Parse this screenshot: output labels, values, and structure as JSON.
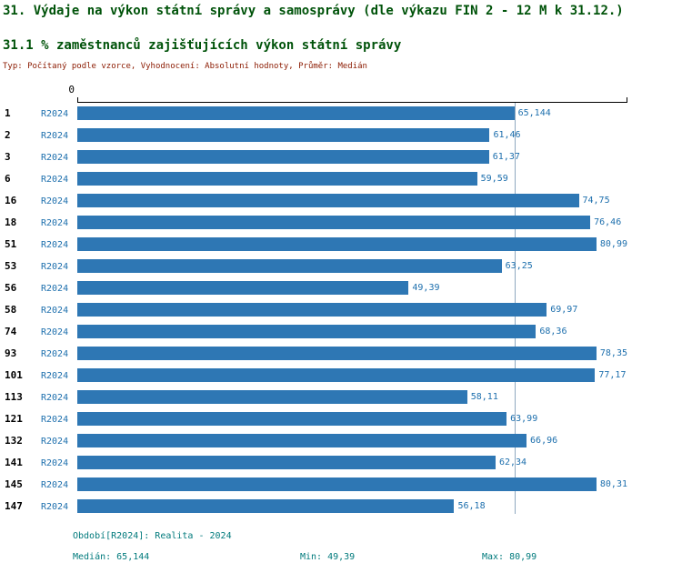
{
  "header": {
    "title": "31. Výdaje na výkon státní správy a samosprávy (dle výkazu FIN 2 - 12 M k 31.12.)",
    "subtitle": "31.1 % zaměstnanců zajišťujících výkon státní správy",
    "meta": "Typ: Počítaný podle vzorce, Vyhodnocení: Absolutní hodnoty, Průměr: Medián"
  },
  "chart_data": {
    "type": "bar",
    "orientation": "horizontal",
    "title": "31.1 % zaměstnanců zajišťujících výkon státní správy",
    "series": "R2024",
    "x_axis": {
      "zero_label": "0",
      "min": 0,
      "max": 82,
      "grid": false
    },
    "median": 65.144,
    "categories": [
      "1",
      "2",
      "3",
      "6",
      "16",
      "18",
      "51",
      "53",
      "56",
      "58",
      "74",
      "93",
      "101",
      "113",
      "121",
      "132",
      "141",
      "145",
      "147"
    ],
    "values": [
      65.144,
      61.46,
      61.37,
      59.59,
      74.75,
      76.46,
      80.99,
      63.25,
      49.39,
      69.97,
      68.36,
      78.35,
      77.17,
      58.11,
      63.99,
      66.96,
      62.34,
      80.31,
      56.18
    ],
    "value_labels": [
      "65,144",
      "61,46",
      "61,37",
      "59,59",
      "74,75",
      "76,46",
      "80,99",
      "63,25",
      "49,39",
      "69,97",
      "68,36",
      "78,35",
      "77,17",
      "58,11",
      "63,99",
      "66,96",
      "62,34",
      "80,31",
      "56,18"
    ]
  },
  "footer": {
    "period": "Období[R2024]: Realita - 2024",
    "median": "Medián: 65,144",
    "min": "Min: 49,39",
    "max": "Max: 80,99"
  },
  "colors": {
    "bar": "#2e77b4",
    "value_text": "#1d6fad",
    "median_line": "#8fa8bf",
    "title": "#00530a",
    "meta": "#8b1a00",
    "footer": "#007a7c"
  }
}
